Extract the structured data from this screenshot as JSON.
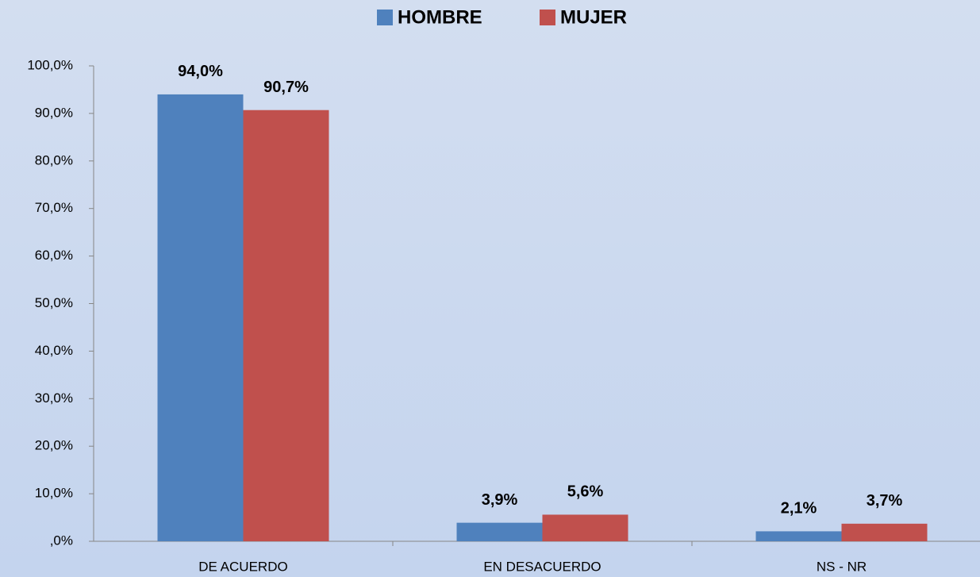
{
  "chart_data": {
    "type": "bar",
    "categories": [
      "DE ACUERDO",
      "EN DESACUERDO",
      "NS - NR"
    ],
    "series": [
      {
        "name": "HOMBRE",
        "color": "#4f81bd",
        "values": [
          94.0,
          3.9,
          2.1
        ],
        "value_labels": [
          "94,0%",
          "3,9%",
          "2,1%"
        ]
      },
      {
        "name": "MUJER",
        "color": "#c0504d",
        "values": [
          90.7,
          5.6,
          3.7
        ],
        "value_labels": [
          "90,7%",
          "5,6%",
          "3,7%"
        ]
      }
    ],
    "ylim": [
      0,
      100
    ],
    "yticks": [
      {
        "value": 0,
        "label": ",0%"
      },
      {
        "value": 10,
        "label": "10,0%"
      },
      {
        "value": 20,
        "label": "20,0%"
      },
      {
        "value": 30,
        "label": "30,0%"
      },
      {
        "value": 40,
        "label": "40,0%"
      },
      {
        "value": 50,
        "label": "50,0%"
      },
      {
        "value": 60,
        "label": "60,0%"
      },
      {
        "value": 70,
        "label": "70,0%"
      },
      {
        "value": 80,
        "label": "80,0%"
      },
      {
        "value": 90,
        "label": "90,0%"
      },
      {
        "value": 100,
        "label": "100,0%"
      }
    ],
    "grid": false,
    "legend": "top"
  }
}
